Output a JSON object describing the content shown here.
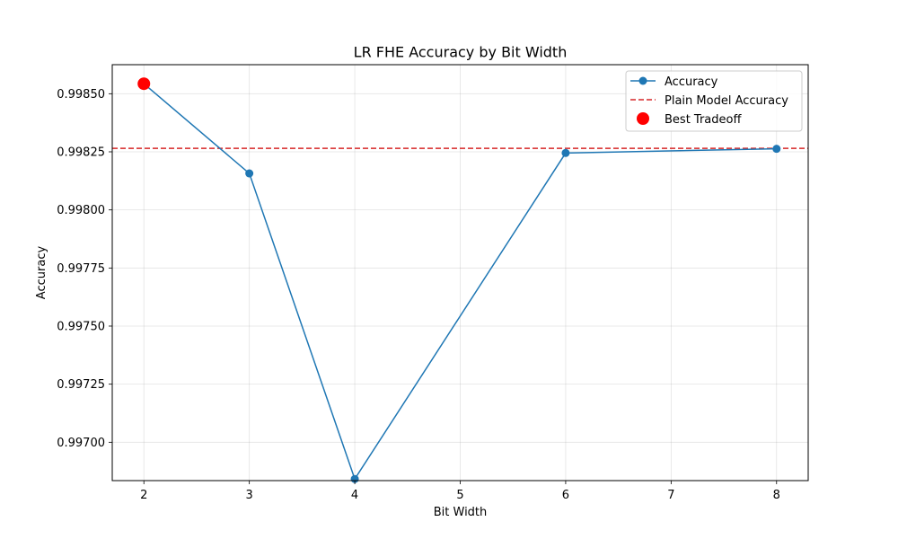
{
  "chart_data": {
    "type": "line",
    "title": "LR FHE Accuracy by Bit Width",
    "xlabel": "Bit Width",
    "ylabel": "Accuracy",
    "xlim": [
      1.7,
      8.3
    ],
    "ylim": [
      0.996835,
      0.998625
    ],
    "xticks": [
      2,
      3,
      4,
      5,
      6,
      7,
      8
    ],
    "xtick_labels": [
      "2",
      "3",
      "4",
      "5",
      "6",
      "7",
      "8"
    ],
    "yticks": [
      0.997,
      0.99725,
      0.9975,
      0.99775,
      0.998,
      0.99825,
      0.9985
    ],
    "ytick_labels": [
      "0.99700",
      "0.99725",
      "0.99750",
      "0.99775",
      "0.99800",
      "0.99825",
      "0.99850"
    ],
    "grid": true,
    "legend_position": "upper right",
    "series": [
      {
        "name": "Accuracy",
        "kind": "line-marker",
        "color": "#1f77b4",
        "x": [
          2,
          3,
          4,
          6,
          8
        ],
        "y": [
          0.998543,
          0.998157,
          0.996842,
          0.998245,
          0.998263
        ]
      },
      {
        "name": "Plain Model Accuracy",
        "kind": "hline-dashed",
        "color": "#d62728",
        "y": 0.998265
      },
      {
        "name": "Best Tradeoff",
        "kind": "scatter",
        "color": "#ff0000",
        "x": [
          2
        ],
        "y": [
          0.998543
        ]
      }
    ]
  }
}
